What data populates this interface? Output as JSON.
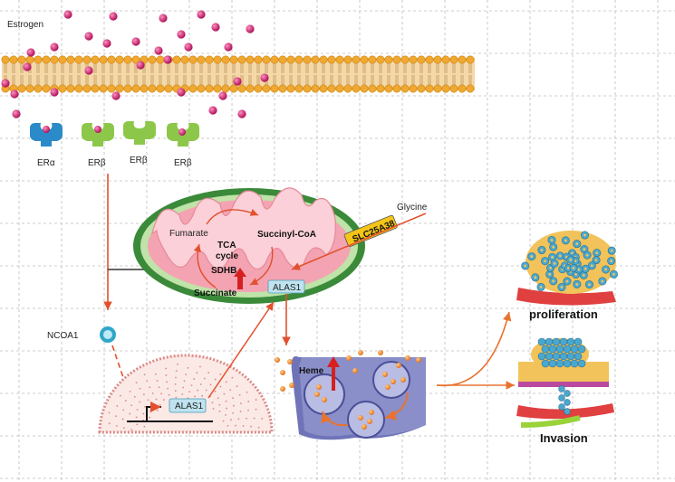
{
  "labels": {
    "estrogen": "Estrogen",
    "er_alpha": "ERα",
    "er_beta_1": "ERβ",
    "er_beta_2": "ERβ",
    "er_beta_3": "ERβ",
    "ncoa1": "NCOA1",
    "alas1_nucleus": "ALAS1",
    "fumarate": "Fumarate",
    "tca_cycle_line1": "TCA",
    "tca_cycle_line2": "cycle",
    "succinyl_coa": "Succinyl-CoA",
    "succinate": "Succinate",
    "sdhb": "SDHB",
    "alas1_mito": "ALAS1",
    "glycine": "Glycine",
    "slc25a38": "SLC25A38",
    "heme": "Heme",
    "proliferation": "proliferation",
    "invasion": "Invasion"
  },
  "colors": {
    "estrogen_dot": "#c2185b",
    "membrane_head": "#f0a830",
    "membrane_body": "#f5d8a8",
    "er_alpha": "#2b8ac8",
    "er_beta": "#8cc74a",
    "mito_outer": "#3a8a3a",
    "mito_inner": "#f7b5c0",
    "arrow_red": "#e2502d",
    "cell_purple": "#6f74b8",
    "highlight_box": "#bfe3ef",
    "slc_box": "#f5c518"
  }
}
